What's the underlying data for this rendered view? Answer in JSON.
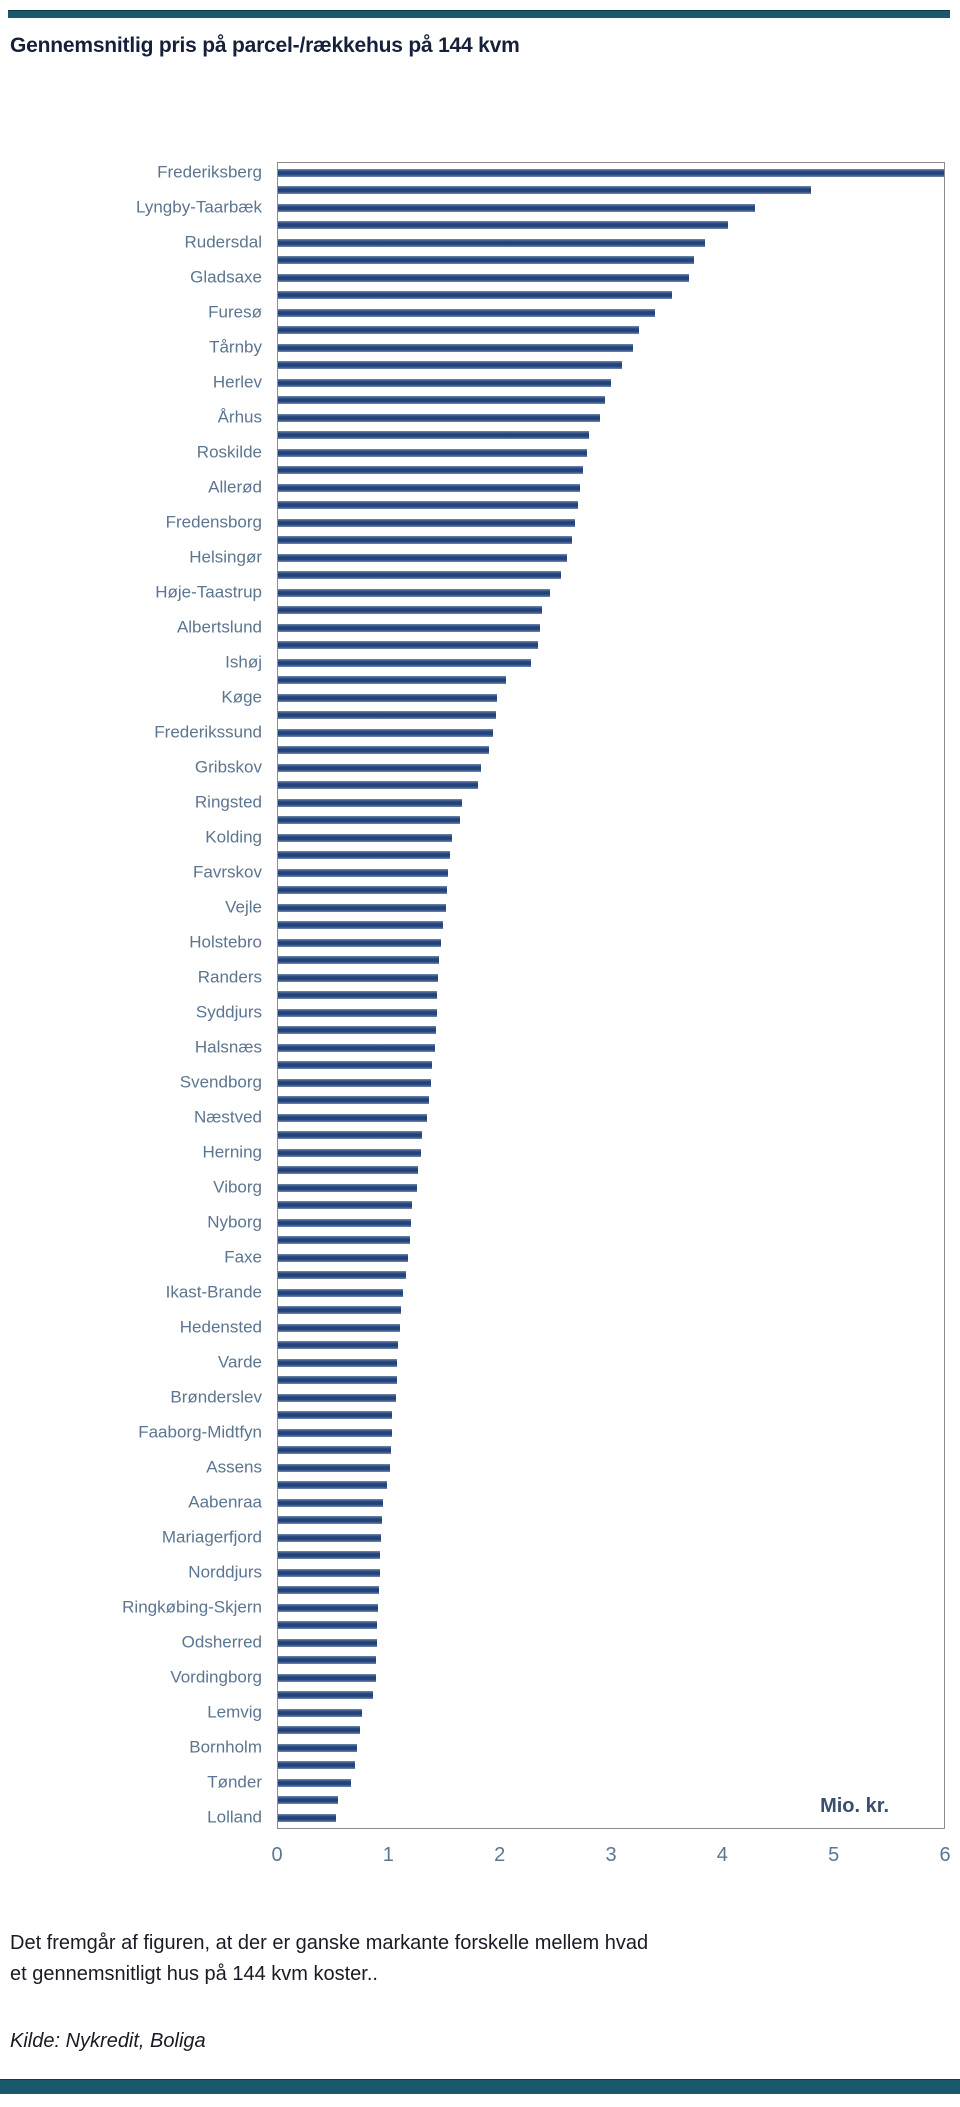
{
  "page": {
    "title": "Gennemsnitlig pris på parcel-/rækkehus på 144 kvm",
    "note_line1": "Det fremgår af figuren, at der er ganske markante forskelle mellem hvad",
    "note_line2": "et gennemsnitligt hus på 144 kvm koster..",
    "source": "Kilde: Nykredit, Boliga"
  },
  "colors": {
    "bar": "#1e3f78",
    "rule_teal": "#1a586c",
    "category_label": "#5c7590",
    "title_text": "#16203a",
    "plot_border": "#8c8c8c"
  },
  "chart_data": {
    "type": "bar",
    "orientation": "horizontal",
    "title": "Gennemsnitlig pris på parcel-/rækkehus på 144 kvm",
    "xlabel": "Mio. kr.",
    "unit_label": "Mio. kr.",
    "xlim": [
      0,
      6
    ],
    "xticks": [
      "0",
      "1",
      "2",
      "3",
      "4",
      "5",
      "6"
    ],
    "grid": false,
    "legend": "none",
    "note": "Unlabeled bars sit between each labeled municipality in the original figure; their names are not shown in the image.",
    "bars": [
      {
        "label": "Frederiksberg",
        "value": 6.0
      },
      {
        "label": "",
        "value": 4.8
      },
      {
        "label": "Lyngby-Taarbæk",
        "value": 4.3
      },
      {
        "label": "",
        "value": 4.05
      },
      {
        "label": "Rudersdal",
        "value": 3.85
      },
      {
        "label": "",
        "value": 3.75
      },
      {
        "label": "Gladsaxe",
        "value": 3.7
      },
      {
        "label": "",
        "value": 3.55
      },
      {
        "label": "Furesø",
        "value": 3.4
      },
      {
        "label": "",
        "value": 3.25
      },
      {
        "label": "Tårnby",
        "value": 3.2
      },
      {
        "label": "",
        "value": 3.1
      },
      {
        "label": "Herlev",
        "value": 3.0
      },
      {
        "label": "",
        "value": 2.95
      },
      {
        "label": "Århus",
        "value": 2.9
      },
      {
        "label": "",
        "value": 2.8
      },
      {
        "label": "Roskilde",
        "value": 2.78
      },
      {
        "label": "",
        "value": 2.75
      },
      {
        "label": "Allerød",
        "value": 2.72
      },
      {
        "label": "",
        "value": 2.7
      },
      {
        "label": "Fredensborg",
        "value": 2.68
      },
      {
        "label": "",
        "value": 2.65
      },
      {
        "label": "Helsingør",
        "value": 2.6
      },
      {
        "label": "",
        "value": 2.55
      },
      {
        "label": "Høje-Taastrup",
        "value": 2.45
      },
      {
        "label": "",
        "value": 2.38
      },
      {
        "label": "Albertslund",
        "value": 2.36
      },
      {
        "label": "",
        "value": 2.34
      },
      {
        "label": "Ishøj",
        "value": 2.28
      },
      {
        "label": "",
        "value": 2.05
      },
      {
        "label": "Køge",
        "value": 1.97
      },
      {
        "label": "",
        "value": 1.96
      },
      {
        "label": "Frederikssund",
        "value": 1.94
      },
      {
        "label": "",
        "value": 1.9
      },
      {
        "label": "Gribskov",
        "value": 1.83
      },
      {
        "label": "",
        "value": 1.8
      },
      {
        "label": "Ringsted",
        "value": 1.66
      },
      {
        "label": "",
        "value": 1.64
      },
      {
        "label": "Kolding",
        "value": 1.57
      },
      {
        "label": "",
        "value": 1.55
      },
      {
        "label": "Favrskov",
        "value": 1.53
      },
      {
        "label": "",
        "value": 1.52
      },
      {
        "label": "Vejle",
        "value": 1.51
      },
      {
        "label": "",
        "value": 1.49
      },
      {
        "label": "Holstebro",
        "value": 1.47
      },
      {
        "label": "",
        "value": 1.45
      },
      {
        "label": "Randers",
        "value": 1.44
      },
      {
        "label": "",
        "value": 1.43
      },
      {
        "label": "Syddjurs",
        "value": 1.43
      },
      {
        "label": "",
        "value": 1.42
      },
      {
        "label": "Halsnæs",
        "value": 1.41
      },
      {
        "label": "",
        "value": 1.39
      },
      {
        "label": "Svendborg",
        "value": 1.38
      },
      {
        "label": "",
        "value": 1.36
      },
      {
        "label": "Næstved",
        "value": 1.34
      },
      {
        "label": "",
        "value": 1.3
      },
      {
        "label": "Herning",
        "value": 1.29
      },
      {
        "label": "",
        "value": 1.26
      },
      {
        "label": "Viborg",
        "value": 1.25
      },
      {
        "label": "",
        "value": 1.21
      },
      {
        "label": "Nyborg",
        "value": 1.2
      },
      {
        "label": "",
        "value": 1.19
      },
      {
        "label": "Faxe",
        "value": 1.17
      },
      {
        "label": "",
        "value": 1.15
      },
      {
        "label": "Ikast-Brande",
        "value": 1.13
      },
      {
        "label": "",
        "value": 1.11
      },
      {
        "label": "Hedensted",
        "value": 1.1
      },
      {
        "label": "",
        "value": 1.08
      },
      {
        "label": "Varde",
        "value": 1.07
      },
      {
        "label": "",
        "value": 1.07
      },
      {
        "label": "Brønderslev",
        "value": 1.06
      },
      {
        "label": "",
        "value": 1.03
      },
      {
        "label": "Faaborg-Midtfyn",
        "value": 1.03
      },
      {
        "label": "",
        "value": 1.02
      },
      {
        "label": "Assens",
        "value": 1.01
      },
      {
        "label": "",
        "value": 0.98
      },
      {
        "label": "Aabenraa",
        "value": 0.95
      },
      {
        "label": "",
        "value": 0.94
      },
      {
        "label": "Mariagerfjord",
        "value": 0.93
      },
      {
        "label": "",
        "value": 0.92
      },
      {
        "label": "Norddjurs",
        "value": 0.92
      },
      {
        "label": "",
        "value": 0.91
      },
      {
        "label": "Ringkøbing-Skjern",
        "value": 0.9
      },
      {
        "label": "",
        "value": 0.89
      },
      {
        "label": "Odsherred",
        "value": 0.89
      },
      {
        "label": "",
        "value": 0.88
      },
      {
        "label": "Vordingborg",
        "value": 0.88
      },
      {
        "label": "",
        "value": 0.86
      },
      {
        "label": "Lemvig",
        "value": 0.76
      },
      {
        "label": "",
        "value": 0.74
      },
      {
        "label": "Bornholm",
        "value": 0.71
      },
      {
        "label": "",
        "value": 0.69
      },
      {
        "label": "Tønder",
        "value": 0.66
      },
      {
        "label": "",
        "value": 0.54
      },
      {
        "label": "Lolland",
        "value": 0.52
      }
    ]
  }
}
